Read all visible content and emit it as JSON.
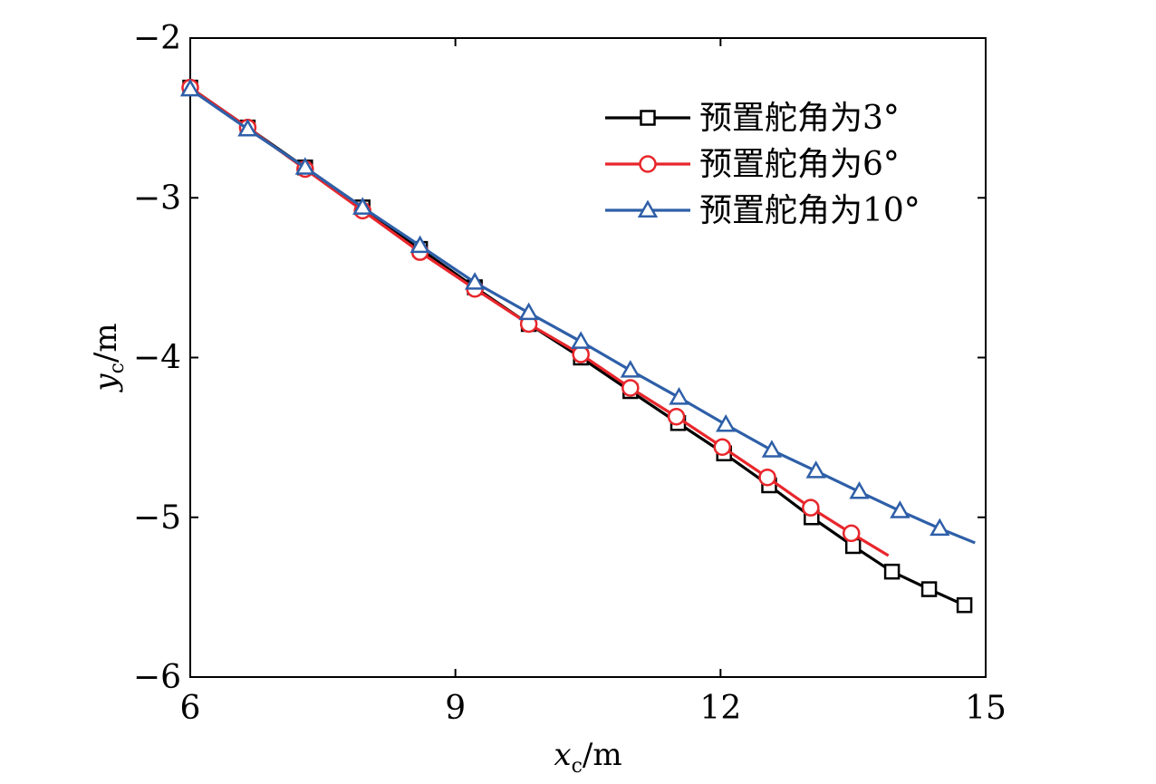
{
  "chart_data": {
    "type": "line",
    "title": "",
    "xlabel": {
      "var": "x",
      "sub": "c",
      "unit": "/m"
    },
    "ylabel": {
      "var": "y",
      "sub": "c",
      "unit": "/m"
    },
    "xlim": [
      6,
      15
    ],
    "ylim": [
      -6,
      -2
    ],
    "xticks": [
      6,
      9,
      12,
      15
    ],
    "yticks": [
      -2,
      -3,
      -4,
      -5,
      -6
    ],
    "xtick_labels": [
      "6",
      "9",
      "12",
      "15"
    ],
    "ytick_labels": [
      "−2",
      "−3",
      "−4",
      "−5",
      "−6"
    ],
    "grid": false,
    "legend_position": "top-right",
    "series": [
      {
        "name": "预置舵角为3°",
        "color": "#000000",
        "marker": "square",
        "x": [
          6.0,
          6.65,
          7.3,
          7.95,
          8.6,
          9.22,
          9.83,
          10.42,
          10.98,
          11.52,
          12.04,
          12.55,
          13.03,
          13.5,
          13.94,
          14.36,
          14.76
        ],
        "y": [
          -2.31,
          -2.56,
          -2.81,
          -3.06,
          -3.32,
          -3.56,
          -3.79,
          -4.0,
          -4.21,
          -4.41,
          -4.6,
          -4.8,
          -5.0,
          -5.18,
          -5.34,
          -5.45,
          -5.55
        ]
      },
      {
        "name": "预置舵角为6°",
        "color": "#e8262b",
        "marker": "circle",
        "line_end": [
          13.9,
          -5.24
        ],
        "x": [
          6.0,
          6.65,
          7.3,
          7.95,
          8.6,
          9.22,
          9.83,
          10.42,
          10.98,
          11.5,
          12.02,
          12.53,
          13.02,
          13.48
        ],
        "y": [
          -2.31,
          -2.56,
          -2.82,
          -3.08,
          -3.34,
          -3.57,
          -3.79,
          -3.98,
          -4.19,
          -4.37,
          -4.56,
          -4.75,
          -4.94,
          -5.1
        ]
      },
      {
        "name": "预置舵角为10°",
        "color": "#2e5fa8",
        "marker": "triangle",
        "line_end": [
          14.88,
          -5.16
        ],
        "x": [
          6.0,
          6.65,
          7.3,
          7.95,
          8.6,
          9.22,
          9.83,
          10.42,
          10.98,
          11.53,
          12.06,
          12.58,
          13.08,
          13.57,
          14.03,
          14.48
        ],
        "y": [
          -2.32,
          -2.57,
          -2.81,
          -3.06,
          -3.3,
          -3.53,
          -3.72,
          -3.9,
          -4.08,
          -4.25,
          -4.42,
          -4.58,
          -4.71,
          -4.84,
          -4.96,
          -5.07
        ]
      }
    ]
  }
}
